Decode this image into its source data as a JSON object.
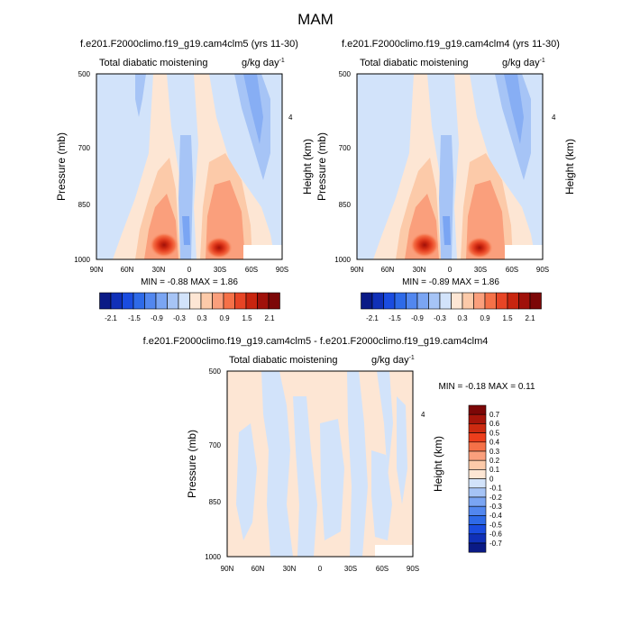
{
  "figure": {
    "title": "MAM"
  },
  "colors": {
    "neg": [
      "#0a1a86",
      "#1030b8",
      "#1a4ce0",
      "#2e6ae8",
      "#5287ef",
      "#7aa5f3",
      "#a6c4f6",
      "#d2e3fa"
    ],
    "pos": [
      "#fde6d4",
      "#fccaa9",
      "#fa9f7c",
      "#f57148",
      "#e74525",
      "#c8250f",
      "#a0110a",
      "#7c0707"
    ],
    "pos_diff": [
      "#fde6d4",
      "#fccaa9",
      "#fa9f7c",
      "#f57148",
      "#ec3e1c",
      "#cc2a10",
      "#a6150a",
      "#7c0707"
    ],
    "neg_diff": [
      "#d2e3fa",
      "#a6c4f6",
      "#7aa5f3",
      "#5287ef",
      "#2e6ae8",
      "#1a4ce0",
      "#1030b8",
      "#0a1a86"
    ]
  },
  "chart_data": [
    {
      "type": "heatmap",
      "title": "f.e201.F2000climo.f19_g19.cam4clm5 (yrs 11-30)",
      "subtitle_left": "Total diabatic moistening",
      "units": "g/kg day",
      "units_exp": "-1",
      "ylabel": "Pressure (mb)",
      "ylabel_right": "Height (km)",
      "x_ticks": [
        "90N",
        "60N",
        "30N",
        "0",
        "30S",
        "60S",
        "90S"
      ],
      "y_ticks": [
        "500",
        "700",
        "850",
        "1000"
      ],
      "right_ticks": [
        "4"
      ],
      "stats": "MIN =  -0.88  MAX =   1.86",
      "colorbar_labels": [
        "-2.1",
        "-1.5",
        "-0.9",
        "-0.3",
        "0.3",
        "0.9",
        "1.5",
        "2.1"
      ],
      "levels": [
        -2.1,
        -1.8,
        -1.5,
        -1.2,
        -0.9,
        -0.6,
        -0.3,
        0,
        0.3,
        0.6,
        0.9,
        1.2,
        1.5,
        1.8,
        2.1
      ],
      "min": -0.88,
      "max": 1.86
    },
    {
      "type": "heatmap",
      "title": "f.e201.F2000climo.f19_g19.cam4clm4 (yrs 11-30)",
      "subtitle_left": "Total diabatic moistening",
      "units": "g/kg day",
      "units_exp": "-1",
      "ylabel": "Pressure (mb)",
      "ylabel_right": "Height (km)",
      "x_ticks": [
        "90N",
        "60N",
        "30N",
        "0",
        "30S",
        "60S",
        "90S"
      ],
      "y_ticks": [
        "500",
        "700",
        "850",
        "1000"
      ],
      "right_ticks": [
        "4"
      ],
      "stats": "MIN =  -0.89  MAX =   1.86",
      "colorbar_labels": [
        "-2.1",
        "-1.5",
        "-0.9",
        "-0.3",
        "0.3",
        "0.9",
        "1.5",
        "2.1"
      ],
      "levels": [
        -2.1,
        -1.8,
        -1.5,
        -1.2,
        -0.9,
        -0.6,
        -0.3,
        0,
        0.3,
        0.6,
        0.9,
        1.2,
        1.5,
        1.8,
        2.1
      ],
      "min": -0.89,
      "max": 1.86
    },
    {
      "type": "heatmap",
      "title": "f.e201.F2000climo.f19_g19.cam4clm5 - f.e201.F2000climo.f19_g19.cam4clm4",
      "subtitle_left": "Total diabatic moistening",
      "units": "g/kg day",
      "units_exp": "-1",
      "ylabel": "Pressure (mb)",
      "ylabel_right": "Height (km)",
      "x_ticks": [
        "90N",
        "60N",
        "30N",
        "0",
        "30S",
        "60S",
        "90S"
      ],
      "y_ticks": [
        "500",
        "700",
        "850",
        "1000"
      ],
      "right_ticks": [
        "4"
      ],
      "stats": "MIN =  -0.18  MAX =   0.11",
      "colorbar_labels": [
        "0.7",
        "0.6",
        "0.5",
        "0.4",
        "0.3",
        "0.2",
        "0.1",
        "0",
        "-0.1",
        "-0.2",
        "-0.3",
        "-0.4",
        "-0.5",
        "-0.6",
        "-0.7"
      ],
      "levels": [
        -0.7,
        -0.6,
        -0.5,
        -0.4,
        -0.3,
        -0.2,
        -0.1,
        0,
        0.1,
        0.2,
        0.3,
        0.4,
        0.5,
        0.6,
        0.7
      ],
      "min": -0.18,
      "max": 0.11
    }
  ]
}
